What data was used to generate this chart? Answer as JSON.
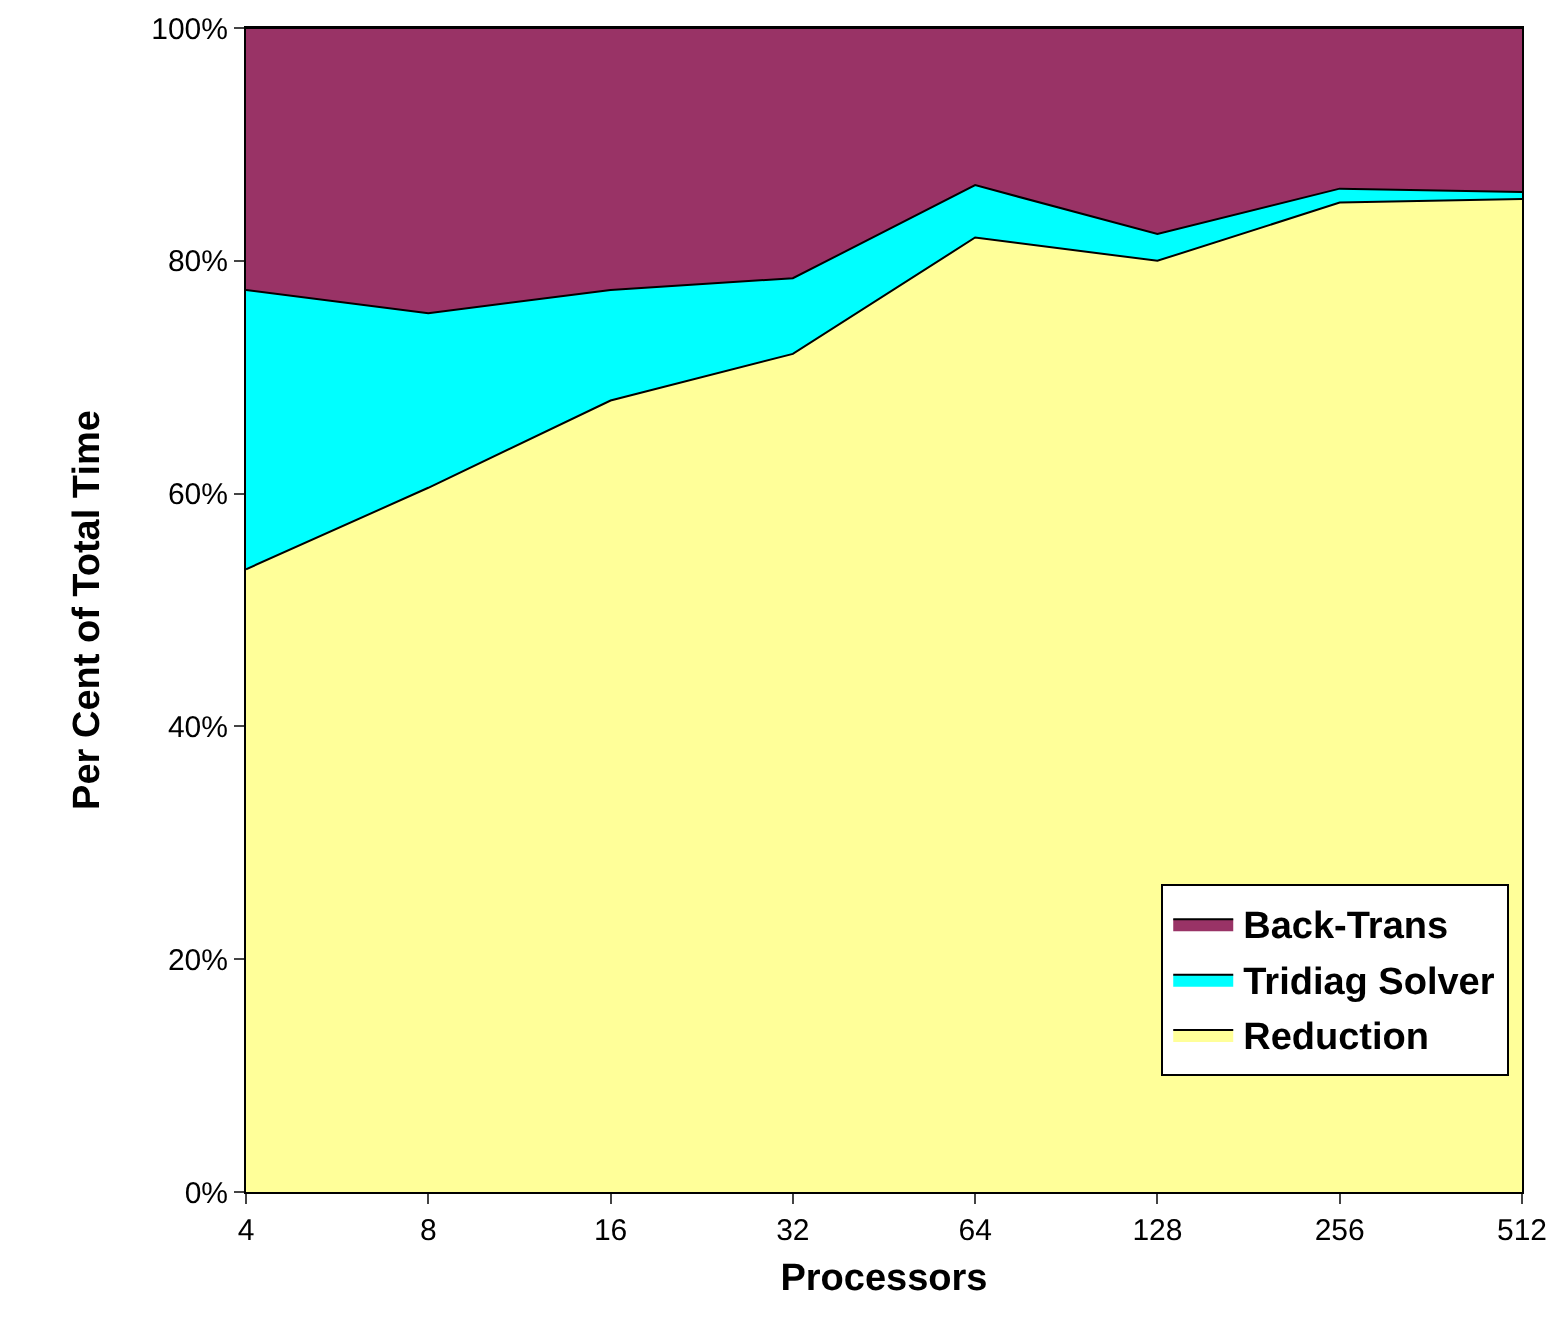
{
  "chart_data": {
    "type": "area",
    "stacked": true,
    "xlabel": "Processors",
    "ylabel": "Per Cent of Total Time",
    "categories": [
      "4",
      "8",
      "16",
      "32",
      "64",
      "128",
      "256",
      "512"
    ],
    "series": [
      {
        "name": "Reduction",
        "color": "#ffff99",
        "values": [
          53.5,
          60.5,
          68,
          72,
          82,
          80,
          85,
          85.3
        ]
      },
      {
        "name": "Tridiag Solver",
        "color": "#00ffff",
        "values": [
          24,
          15,
          9.5,
          6.5,
          4.5,
          2.3,
          1.2,
          0.6
        ]
      },
      {
        "name": "Back-Trans",
        "color": "#993366",
        "values": [
          22.5,
          24.5,
          22.5,
          21.5,
          13.5,
          17.7,
          13.8,
          14.1
        ]
      }
    ],
    "ylim": [
      0,
      100
    ],
    "yticks": [
      {
        "value": 0,
        "label": "0%"
      },
      {
        "value": 20,
        "label": "20%"
      },
      {
        "value": 40,
        "label": "40%"
      },
      {
        "value": 60,
        "label": "60%"
      },
      {
        "value": 80,
        "label": "80%"
      },
      {
        "value": 100,
        "label": "100%"
      }
    ],
    "legend": "bottom right"
  }
}
